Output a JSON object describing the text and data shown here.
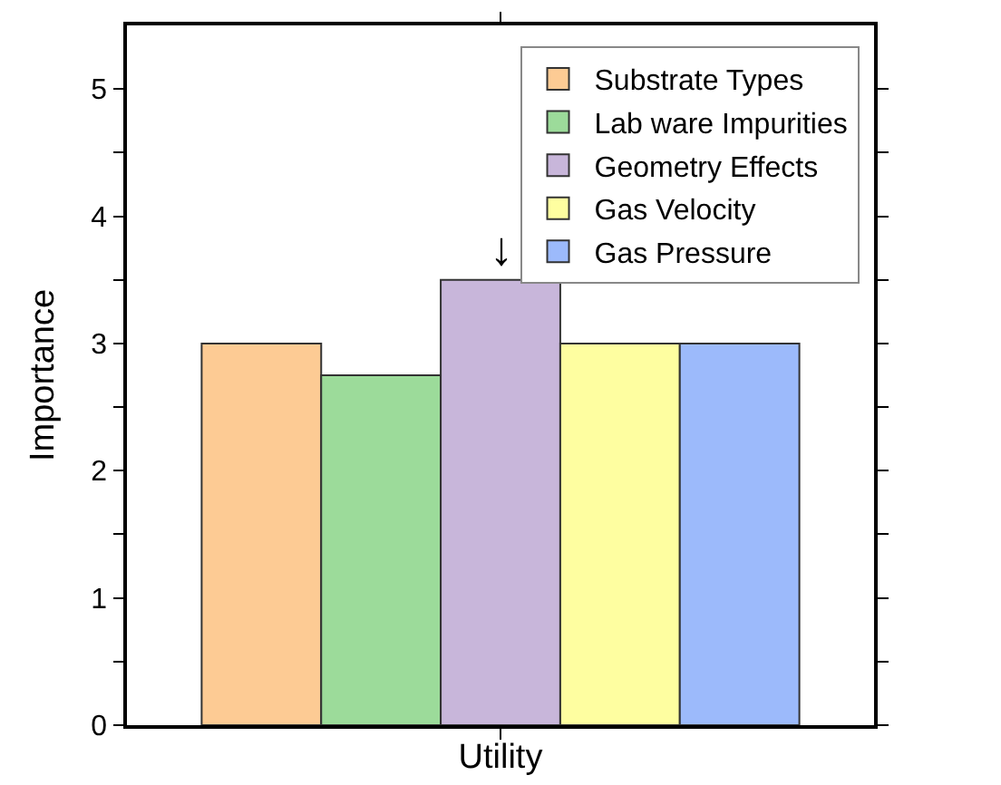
{
  "chart_data": {
    "type": "bar",
    "xlabel": "Utility",
    "ylabel": "Importance",
    "categories": [
      null
    ],
    "series": [
      {
        "name": "Substrate Types",
        "color": "#fdcb94",
        "values": [
          3
        ]
      },
      {
        "name": "Lab ware Impurities",
        "color": "#9cdb9a",
        "values": [
          2.75
        ]
      },
      {
        "name": "Geometry Effects",
        "color": "#c8b6da",
        "values": [
          3.5
        ]
      },
      {
        "name": "Gas Velocity",
        "color": "#fefea0",
        "values": [
          3
        ]
      },
      {
        "name": "Gas Pressure",
        "color": "#9cbafb",
        "values": [
          3
        ]
      }
    ],
    "ylim": [
      0,
      5.5
    ],
    "yticks": [
      0,
      {
        "value": 0.5,
        "label": null
      },
      1,
      {
        "value": 1.5,
        "label": null
      },
      2,
      {
        "value": 2.5,
        "label": null
      },
      3,
      {
        "value": 3.5,
        "label": null
      },
      4,
      {
        "value": 4.5,
        "label": null
      },
      5
    ],
    "annotations": [
      {
        "text": "↓",
        "y": 3.5
      }
    ],
    "legend": "top right",
    "grid": false
  }
}
